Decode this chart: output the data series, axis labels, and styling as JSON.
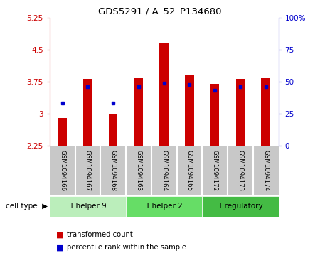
{
  "title": "GDS5291 / A_52_P134680",
  "samples": [
    "GSM1094166",
    "GSM1094167",
    "GSM1094168",
    "GSM1094163",
    "GSM1094164",
    "GSM1094165",
    "GSM1094172",
    "GSM1094173",
    "GSM1094174"
  ],
  "bar_values": [
    2.9,
    3.82,
    3.01,
    3.83,
    4.65,
    3.9,
    3.7,
    3.82,
    3.84
  ],
  "bar_bottom": 2.25,
  "blue_marker_y": [
    3.25,
    3.63,
    3.25,
    3.64,
    3.72,
    3.68,
    3.55,
    3.63,
    3.64
  ],
  "ylim_left": [
    2.25,
    5.25
  ],
  "ylim_right": [
    0,
    100
  ],
  "yticks_left": [
    2.25,
    3.0,
    3.75,
    4.5,
    5.25
  ],
  "ytick_labels_left": [
    "2.25",
    "3",
    "3.75",
    "4.5",
    "5.25"
  ],
  "yticks_right": [
    0,
    25,
    50,
    75,
    100
  ],
  "ytick_labels_right": [
    "0",
    "25",
    "50",
    "75",
    "100%"
  ],
  "bar_color": "#cc0000",
  "blue_marker_color": "#0000cc",
  "group_colors": [
    "#bbeebb",
    "#66dd66",
    "#44bb44"
  ],
  "group_labels": [
    "T helper 9",
    "T helper 2",
    "T regulatory"
  ],
  "group_ranges": [
    [
      0,
      3
    ],
    [
      3,
      6
    ],
    [
      6,
      9
    ]
  ],
  "cell_type_label": "cell type",
  "legend_bar_label": "transformed count",
  "legend_marker_label": "percentile rank within the sample",
  "bar_width": 0.35,
  "label_area_color": "#c8c8c8",
  "left_axis_color": "#cc0000",
  "right_axis_color": "#0000cc",
  "grid_yticks": [
    3.0,
    3.75,
    4.5
  ]
}
